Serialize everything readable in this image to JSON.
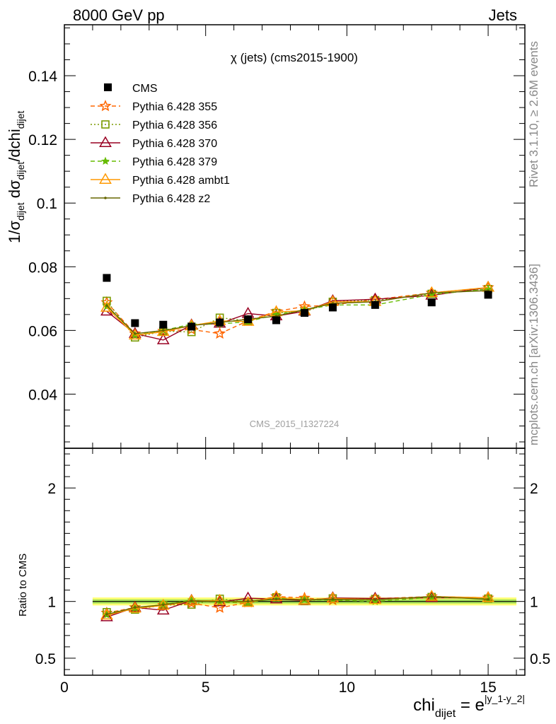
{
  "header": {
    "left": "8000 GeV pp",
    "right": "Jets"
  },
  "side": {
    "rivet": "Rivet 3.1.10, ≥ 2.6M events",
    "site": "mcplots.cern.ch [arXiv:1306.3436]"
  },
  "watermark": "CMS_2015_I1327224",
  "chart_data": {
    "type": "line",
    "title": "χ (jets) (cms2015-1900)",
    "xlabel": "chi_dijet = e^|y_1-y_2|",
    "ylabel": "1/σ_dijet dσ_dijet/dchi_dijet",
    "ratio_ylabel": "Ratio to CMS",
    "xlim": [
      0,
      16.3
    ],
    "ylim": [
      0.023,
      0.156
    ],
    "ratio_ylim": [
      0.35,
      2.35
    ],
    "x": [
      1.5,
      2.5,
      3.5,
      4.5,
      5.5,
      6.5,
      7.5,
      8.5,
      9.5,
      11,
      13,
      15
    ],
    "xbins": [
      [
        1,
        2
      ],
      [
        2,
        3
      ],
      [
        3,
        4
      ],
      [
        4,
        5
      ],
      [
        5,
        6
      ],
      [
        6,
        7
      ],
      [
        7,
        8
      ],
      [
        8,
        9
      ],
      [
        9,
        10
      ],
      [
        10,
        12
      ],
      [
        12,
        14
      ],
      [
        14,
        16
      ]
    ],
    "x_ticks": [
      0,
      5,
      10,
      15
    ],
    "y_ticks": [
      0.04,
      0.06,
      0.08,
      0.1,
      0.12,
      0.14
    ],
    "ratio_ticks": [
      0.5,
      1,
      2
    ],
    "reference": {
      "name": "CMS",
      "color": "#000000",
      "values": [
        0.0765,
        0.0623,
        0.0618,
        0.0612,
        0.0625,
        0.0635,
        0.0632,
        0.0655,
        0.0672,
        0.068,
        0.0688,
        0.0712
      ]
    },
    "series": [
      {
        "name": "Pythia 6.428 355",
        "color": "#ff6600",
        "dash": "6,4",
        "marker": "star",
        "values": [
          0.0688,
          0.059,
          0.0598,
          0.0603,
          0.059,
          0.063,
          0.066,
          0.0675,
          0.068,
          0.0697,
          0.0718,
          0.0735
        ]
      },
      {
        "name": "Pythia 6.428 356",
        "color": "#7a9a00",
        "dash": "2,3",
        "marker": "square",
        "values": [
          0.0693,
          0.0578,
          0.0598,
          0.0595,
          0.064,
          0.063,
          0.0655,
          0.0658,
          0.069,
          0.0695,
          0.0715,
          0.073
        ]
      },
      {
        "name": "Pythia 6.428 370",
        "color": "#990022",
        "dash": "",
        "marker": "triangle",
        "values": [
          0.066,
          0.059,
          0.057,
          0.0617,
          0.0622,
          0.0653,
          0.0645,
          0.066,
          0.0693,
          0.0698,
          0.071,
          0.0735
        ]
      },
      {
        "name": "Pythia 6.428 379",
        "color": "#66bb00",
        "dash": "6,4",
        "marker": "smallstar",
        "values": [
          0.0675,
          0.0585,
          0.06,
          0.062,
          0.062,
          0.0628,
          0.065,
          0.0665,
          0.068,
          0.068,
          0.0713,
          0.073
        ]
      },
      {
        "name": "Pythia 6.428 ambt1",
        "color": "#ff9900",
        "dash": "",
        "marker": "triangle",
        "values": [
          0.0672,
          0.0585,
          0.0596,
          0.0615,
          0.063,
          0.0628,
          0.0658,
          0.0662,
          0.069,
          0.069,
          0.0718,
          0.0735
        ]
      },
      {
        "name": "Pythia 6.428 z2",
        "color": "#666600",
        "dash": "",
        "marker": "dot",
        "values": [
          0.0678,
          0.059,
          0.06,
          0.0615,
          0.0625,
          0.0635,
          0.0645,
          0.0665,
          0.0685,
          0.069,
          0.0718,
          0.0725
        ]
      }
    ]
  }
}
